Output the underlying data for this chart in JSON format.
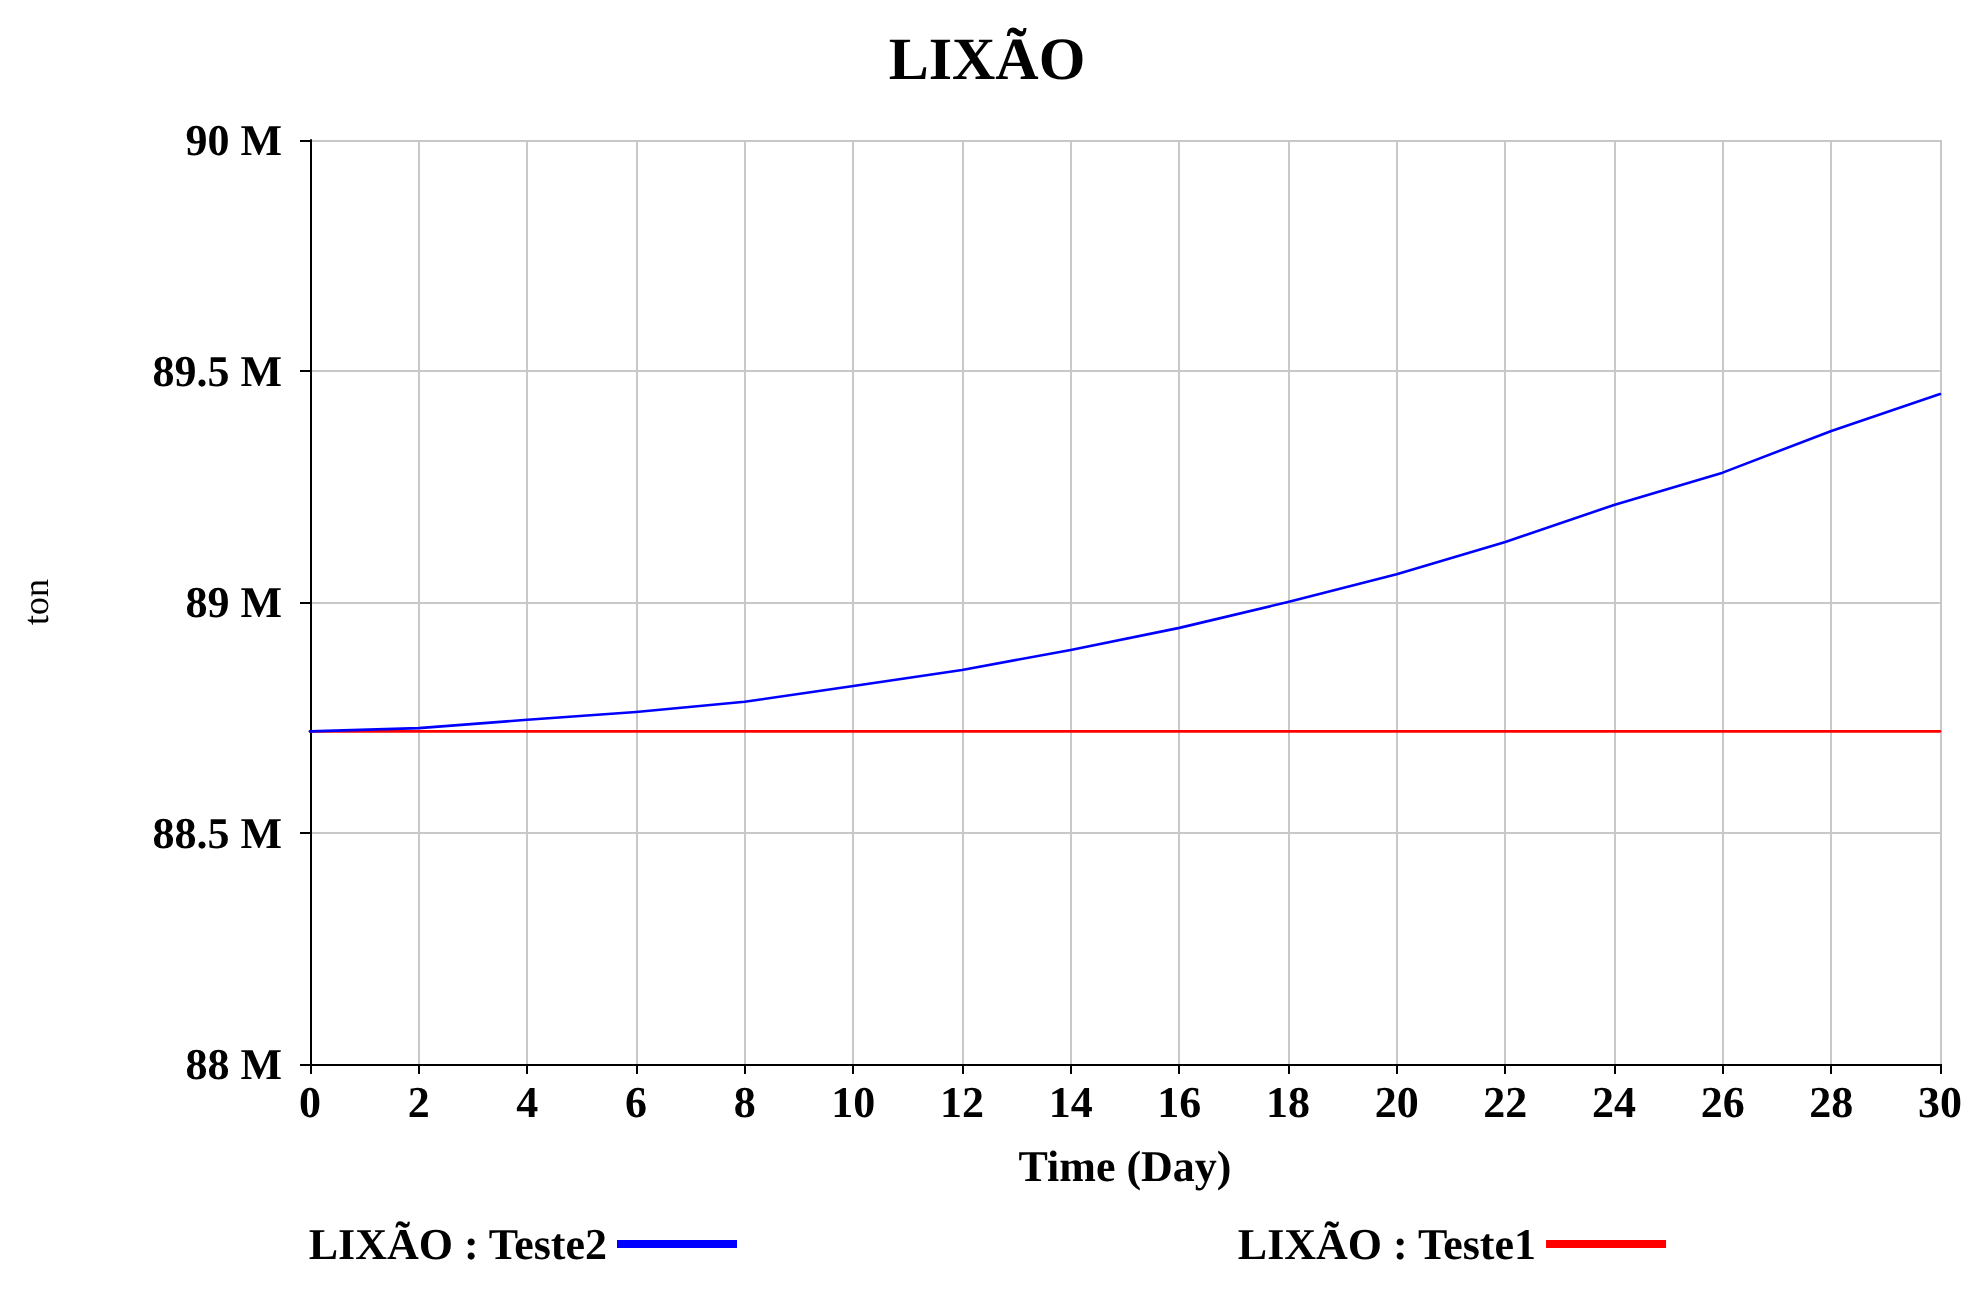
{
  "chart_data": {
    "type": "line",
    "title": "LIXÃO",
    "xlabel": "Time (Day)",
    "ylabel": "ton",
    "x": [
      0,
      2,
      4,
      6,
      8,
      10,
      12,
      14,
      16,
      18,
      20,
      22,
      24,
      26,
      28,
      30
    ],
    "series": [
      {
        "name": "LIXÃO : Teste2",
        "color": "#0000ff",
        "values": [
          88720000,
          88727000,
          88745000,
          88762000,
          88784000,
          88818000,
          88853000,
          88896000,
          88944000,
          89000000,
          89060000,
          89130000,
          89210000,
          89280000,
          89370000,
          89450000
        ]
      },
      {
        "name": "LIXÃO : Teste1",
        "color": "#ff0000",
        "values": [
          88720000,
          88720000,
          88720000,
          88720000,
          88720000,
          88720000,
          88720000,
          88720000,
          88720000,
          88720000,
          88720000,
          88720000,
          88720000,
          88720000,
          88720000,
          88720000
        ]
      }
    ],
    "xlim": [
      0,
      30
    ],
    "xticks": [
      0,
      2,
      4,
      6,
      8,
      10,
      12,
      14,
      16,
      18,
      20,
      22,
      24,
      26,
      28,
      30
    ],
    "ylim": [
      88000000,
      90000000
    ],
    "yticks": [
      {
        "value": 88000000,
        "label": "88 M"
      },
      {
        "value": 88500000,
        "label": "88.5 M"
      },
      {
        "value": 89000000,
        "label": "89 M"
      },
      {
        "value": 89500000,
        "label": "89.5 M"
      },
      {
        "value": 90000000,
        "label": "90 M"
      }
    ],
    "grid": true,
    "legend": "bottom",
    "marker": "none",
    "line_style": "solid"
  }
}
